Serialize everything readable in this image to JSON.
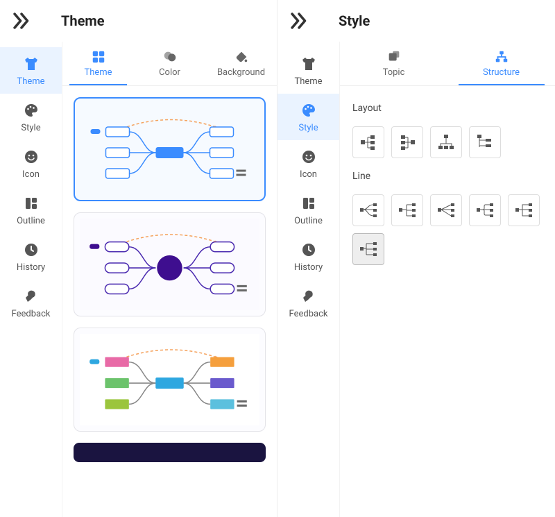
{
  "accent": "#3b8cff",
  "left": {
    "title": "Theme",
    "sidebar": [
      {
        "key": "theme",
        "label": "Theme",
        "icon": "shirt",
        "active": true
      },
      {
        "key": "style",
        "label": "Style",
        "icon": "palette",
        "active": false
      },
      {
        "key": "icon",
        "label": "Icon",
        "icon": "smile",
        "active": false
      },
      {
        "key": "outline",
        "label": "Outline",
        "icon": "outline",
        "active": false
      },
      {
        "key": "history",
        "label": "History",
        "icon": "clock",
        "active": false
      },
      {
        "key": "feedback",
        "label": "Feedback",
        "icon": "wrench",
        "active": false
      }
    ],
    "tabs": [
      {
        "key": "theme",
        "label": "Theme",
        "icon": "grid4",
        "active": true
      },
      {
        "key": "color",
        "label": "Color",
        "icon": "circles",
        "active": false
      },
      {
        "key": "background",
        "label": "Background",
        "icon": "bucket",
        "active": false
      }
    ],
    "themes": [
      {
        "selected": true,
        "bg": "#f6faff",
        "center": "#3b8cff",
        "line": "#3b8cff",
        "box_fill": "#ffffff",
        "box_stroke": "#3b8cff",
        "dash": "#f5a25d",
        "style": "rect"
      },
      {
        "selected": false,
        "bg": "#fbfaff",
        "center": "#3e0e8f",
        "line": "#4b2bb0",
        "box_fill": "#ffffff",
        "box_stroke": "#4b2bb0",
        "dash": "#f5a25d",
        "style": "pill-circle"
      },
      {
        "selected": false,
        "bg": "#ffffff",
        "center": "#2ea7e0",
        "line": "#888888",
        "box_fill": "mixed",
        "box_stroke": "none",
        "dash": "#f5a25d",
        "style": "color-blocks",
        "palette": [
          "#e86aa6",
          "#6cc36c",
          "#9bc53d",
          "#f59f3d",
          "#6a5acd",
          "#5bc0de"
        ]
      }
    ],
    "strip_color": "#1a1440"
  },
  "right": {
    "title": "Style",
    "sidebar": [
      {
        "key": "theme",
        "label": "Theme",
        "icon": "shirt",
        "active": false
      },
      {
        "key": "style",
        "label": "Style",
        "icon": "palette",
        "active": true
      },
      {
        "key": "icon",
        "label": "Icon",
        "icon": "smile",
        "active": false
      },
      {
        "key": "outline",
        "label": "Outline",
        "icon": "outline",
        "active": false
      },
      {
        "key": "history",
        "label": "History",
        "icon": "clock",
        "active": false
      },
      {
        "key": "feedback",
        "label": "Feedback",
        "icon": "wrench",
        "active": false
      }
    ],
    "tabs": [
      {
        "key": "topic",
        "label": "Topic",
        "icon": "topic",
        "active": false
      },
      {
        "key": "structure",
        "label": "Structure",
        "icon": "structure",
        "active": true
      }
    ],
    "sections": {
      "layout": {
        "label": "Layout",
        "options": [
          "layout-right",
          "layout-left",
          "layout-org",
          "layout-tree-right"
        ]
      },
      "line": {
        "label": "Line",
        "options": [
          "line-curve",
          "line-elbow",
          "line-straight",
          "line-rounded",
          "line-step",
          "line-bracket"
        ],
        "selected_index": 5
      }
    }
  }
}
